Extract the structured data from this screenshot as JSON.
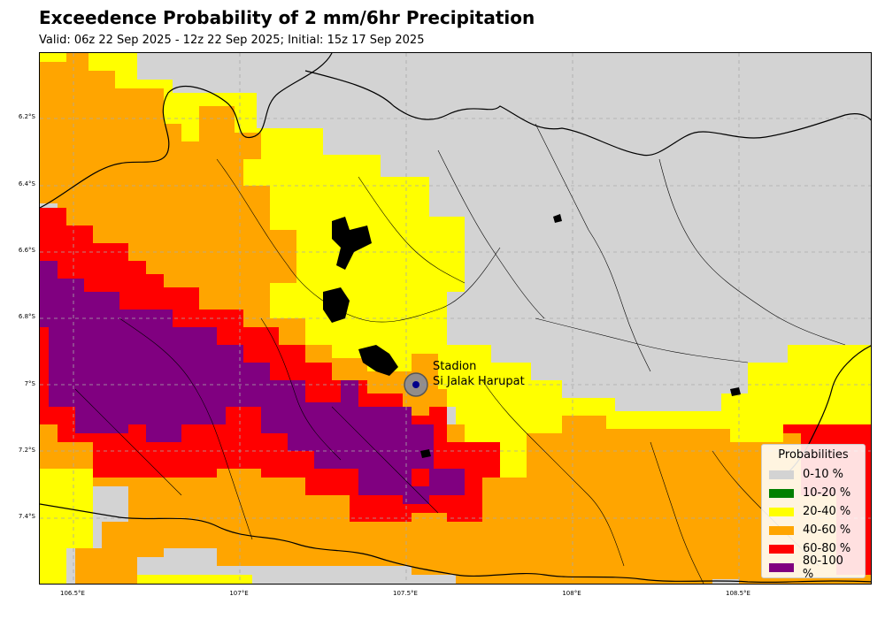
{
  "title": "Exceedence Probability of 2 mm/6hr Precipitation",
  "subtitle": "Valid: 06z 22 Sep 2025 - 12z 22 Sep 2025; Initial: 15z 17 Sep 2025",
  "y_ticks": [
    "6.2°S",
    "6.4°S",
    "6.6°S",
    "6.8°S",
    "7°S",
    "7.2°S",
    "7.4°S"
  ],
  "x_ticks": [
    "106.5°E",
    "107°E",
    "107.5°E",
    "108°E",
    "108.5°E"
  ],
  "station": {
    "label_line1": "Stadion",
    "label_line2": "Si Jalak Harupat"
  },
  "legend": {
    "title": "Probabilities",
    "items": [
      {
        "label": "0-10 %",
        "color": "#d3d3d3"
      },
      {
        "label": "10-20 %",
        "color": "#008000"
      },
      {
        "label": "20-40 %",
        "color": "#ffff00"
      },
      {
        "label": "40-60 %",
        "color": "#ffa500"
      },
      {
        "label": "60-80 %",
        "color": "#ff0000"
      },
      {
        "label": "80-100 %",
        "color": "#800080"
      }
    ]
  }
}
